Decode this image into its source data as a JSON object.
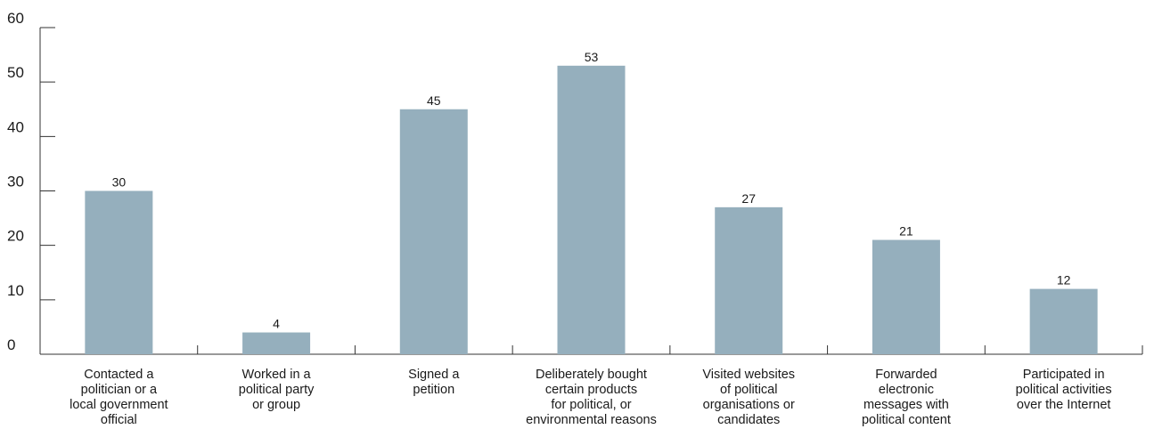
{
  "chart_data": {
    "type": "bar",
    "categories": [
      [
        "Contacted a",
        "politician or a",
        "local government",
        "official"
      ],
      [
        "Worked in a",
        "political party",
        "or group"
      ],
      [
        "Signed a",
        "petition"
      ],
      [
        "Deliberately bought",
        "certain products",
        "for political, or",
        "environmental reasons"
      ],
      [
        "Visited websites",
        "of political",
        "organisations or",
        "candidates"
      ],
      [
        "Forwarded",
        "electronic",
        "messages with",
        "political content"
      ],
      [
        "Participated in",
        "political activities",
        "over the Internet"
      ]
    ],
    "values": [
      30,
      4,
      45,
      53,
      27,
      21,
      12
    ],
    "data_labels": [
      "30",
      "4",
      "45",
      "53",
      "27",
      "21",
      "12"
    ],
    "y_ticks": [
      0,
      10,
      20,
      30,
      40,
      50,
      60
    ],
    "y_tick_labels": [
      "0",
      "10",
      "20",
      "30",
      "40",
      "50",
      "60"
    ],
    "ylim": [
      0,
      60
    ],
    "bar_color": "#95afbd",
    "grid": false,
    "legend": "none"
  }
}
